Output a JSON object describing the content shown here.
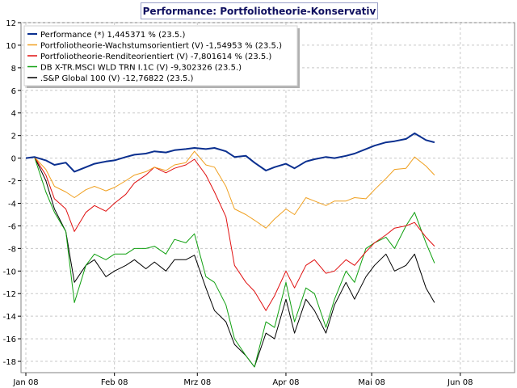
{
  "chart_data": {
    "type": "line",
    "title": "Performance: Portfoliotheorie-Konservativ",
    "ylim": [
      -19,
      12
    ],
    "yticks": [
      12,
      10,
      8,
      6,
      4,
      2,
      0,
      -2,
      -4,
      -6,
      -8,
      -10,
      -12,
      -14,
      -16,
      -18
    ],
    "xlim": [
      "2008-01-01",
      "2008-06-20"
    ],
    "xticks": [
      {
        "date": "2008-01-01",
        "label": "Jan 08"
      },
      {
        "date": "2008-02-01",
        "label": "Feb 08"
      },
      {
        "date": "2008-03-01",
        "label": "Mrz 08"
      },
      {
        "date": "2008-04-01",
        "label": "Apr 08"
      },
      {
        "date": "2008-05-01",
        "label": "Mai 08"
      },
      {
        "date": "2008-06-01",
        "label": "Jun 08"
      }
    ],
    "grid": true,
    "legend_position": "top-left",
    "x": [
      "2008-01-01",
      "2008-01-04",
      "2008-01-08",
      "2008-01-11",
      "2008-01-15",
      "2008-01-18",
      "2008-01-22",
      "2008-01-25",
      "2008-01-29",
      "2008-02-01",
      "2008-02-05",
      "2008-02-08",
      "2008-02-12",
      "2008-02-15",
      "2008-02-19",
      "2008-02-22",
      "2008-02-26",
      "2008-02-29",
      "2008-03-04",
      "2008-03-07",
      "2008-03-11",
      "2008-03-14",
      "2008-03-18",
      "2008-03-21",
      "2008-03-25",
      "2008-03-28",
      "2008-04-01",
      "2008-04-04",
      "2008-04-08",
      "2008-04-11",
      "2008-04-15",
      "2008-04-18",
      "2008-04-22",
      "2008-04-25",
      "2008-04-29",
      "2008-05-02",
      "2008-05-06",
      "2008-05-09",
      "2008-05-13",
      "2008-05-16",
      "2008-05-20",
      "2008-05-23"
    ],
    "series": [
      {
        "name": "Performance (*) 1,445371 % (23.5.)",
        "color": "#0a2f8f",
        "values": [
          0,
          0.1,
          -0.2,
          -0.6,
          -0.4,
          -1.2,
          -0.8,
          -0.5,
          -0.3,
          -0.2,
          0.1,
          0.3,
          0.4,
          0.6,
          0.5,
          0.7,
          0.8,
          0.9,
          0.8,
          0.9,
          0.6,
          0.1,
          0.2,
          -0.4,
          -1.1,
          -0.8,
          -0.5,
          -0.9,
          -0.3,
          -0.1,
          0.1,
          0.0,
          0.2,
          0.4,
          0.8,
          1.1,
          1.4,
          1.5,
          1.7,
          2.2,
          1.6,
          1.4
        ]
      },
      {
        "name": "Portfoliotheorie-Wachstumsorientiert (V) -1,54953 % (23.5.)",
        "color": "#f0a020",
        "values": [
          0,
          0.1,
          -1.0,
          -2.5,
          -3.0,
          -3.5,
          -2.8,
          -2.5,
          -2.9,
          -2.6,
          -2.0,
          -1.5,
          -1.2,
          -0.8,
          -1.1,
          -0.6,
          -0.4,
          0.6,
          -0.6,
          -0.8,
          -2.5,
          -4.5,
          -5.0,
          -5.5,
          -6.2,
          -5.4,
          -4.5,
          -5.0,
          -3.5,
          -3.8,
          -4.2,
          -3.8,
          -3.8,
          -3.5,
          -3.6,
          -2.8,
          -1.8,
          -1.0,
          -0.9,
          0.1,
          -0.7,
          -1.5
        ]
      },
      {
        "name": "Portfoliotheorie-Renditeorientiert (V) -7,801614 % (23.5.)",
        "color": "#e01010",
        "values": [
          0,
          0.1,
          -1.5,
          -3.6,
          -4.5,
          -6.5,
          -4.8,
          -4.2,
          -4.7,
          -4.0,
          -3.2,
          -2.2,
          -1.5,
          -0.8,
          -1.3,
          -0.9,
          -0.6,
          -0.1,
          -1.5,
          -3.0,
          -5.2,
          -9.5,
          -11.0,
          -11.8,
          -13.5,
          -12.2,
          -10.0,
          -11.5,
          -9.5,
          -9.0,
          -10.2,
          -10.0,
          -9.0,
          -9.5,
          -8.3,
          -7.5,
          -6.8,
          -6.2,
          -6.0,
          -5.7,
          -7.0,
          -7.8
        ]
      },
      {
        "name": "DB X-TR.MSCI WLD TRN I.1C (V) -9,302326 (23.5.)",
        "color": "#10a010",
        "values": [
          0,
          0.1,
          -3.0,
          -4.8,
          -6.5,
          -12.8,
          -9.5,
          -8.5,
          -9.0,
          -8.5,
          -8.5,
          -8.0,
          -8.0,
          -7.8,
          -8.5,
          -7.2,
          -7.5,
          -6.7,
          -10.5,
          -11.0,
          -13.0,
          -16.0,
          -17.5,
          -18.5,
          -14.5,
          -15.0,
          -11.0,
          -14.5,
          -11.5,
          -12.0,
          -15.0,
          -12.5,
          -10.0,
          -11.0,
          -8.0,
          -7.5,
          -7.0,
          -8.0,
          -6.0,
          -4.8,
          -7.5,
          -9.3
        ]
      },
      {
        "name": ".S&P Global 100 (V) -12,76822 (23.5.)",
        "color": "#000000",
        "values": [
          0,
          0.1,
          -2.0,
          -4.5,
          -6.5,
          -11.0,
          -9.5,
          -9.0,
          -10.5,
          -10.0,
          -9.5,
          -9.0,
          -9.8,
          -9.2,
          -10.0,
          -9.0,
          -9.0,
          -8.6,
          -11.5,
          -13.5,
          -14.5,
          -16.5,
          -17.5,
          -18.5,
          -15.5,
          -16.0,
          -12.5,
          -15.5,
          -12.5,
          -13.5,
          -15.5,
          -13.0,
          -11.0,
          -12.5,
          -10.5,
          -9.5,
          -8.5,
          -10.0,
          -9.5,
          -8.5,
          -11.5,
          -12.8
        ]
      }
    ]
  }
}
